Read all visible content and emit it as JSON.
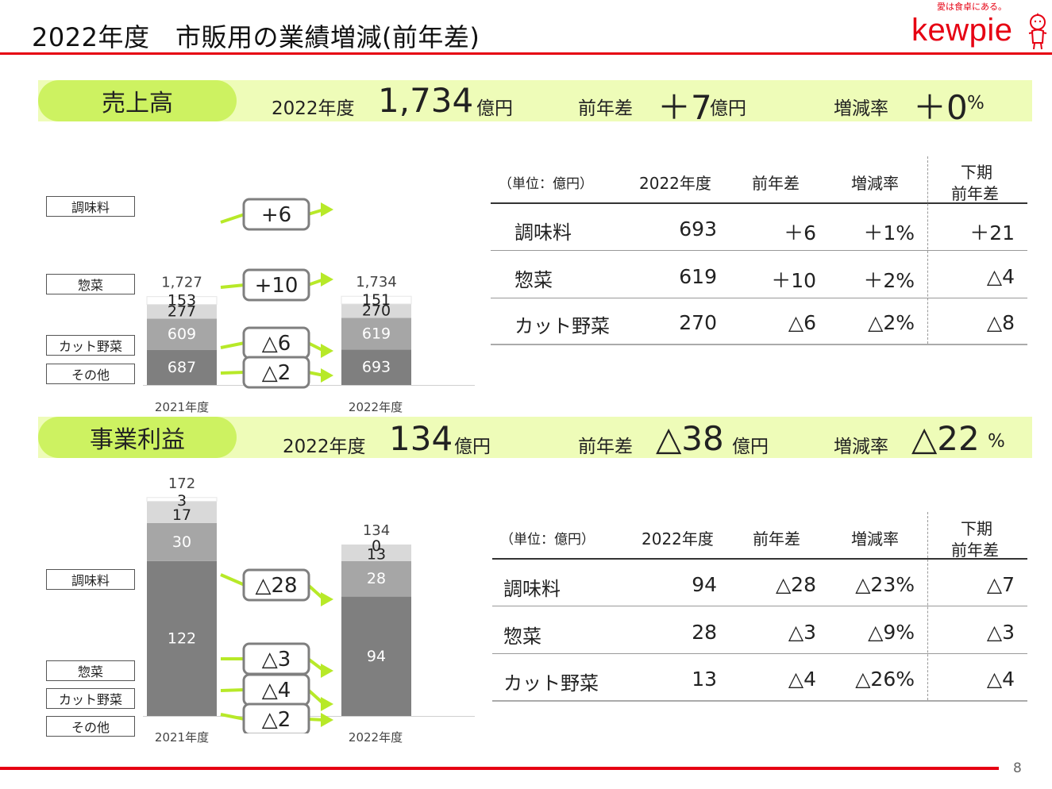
{
  "header": {
    "title": "2022年度　市販用の業績増減(前年差)",
    "logo_tagline": "愛は食卓にある。",
    "logo_text": "kewpie",
    "page_number": "8"
  },
  "sales": {
    "pill": "売上高",
    "year_label": "2022年度",
    "value": "1,734",
    "value_unit": "億円",
    "diff_label": "前年差",
    "diff_value": "＋7",
    "diff_unit": "億円",
    "rate_label": "増減率",
    "rate_value": "＋0",
    "rate_unit": "%"
  },
  "profit": {
    "pill": "事業利益",
    "year_label": "2022年度",
    "value": "134",
    "value_unit": "億円",
    "diff_label": "前年差",
    "diff_value": "△38",
    "diff_unit": "億円",
    "rate_label": "増減率",
    "rate_value": "△22",
    "rate_unit": "%"
  },
  "chart_data": [
    {
      "type": "bar",
      "stacked": true,
      "categories": [
        "2021年度",
        "2022年度"
      ],
      "totals": [
        "1,727",
        "1,734"
      ],
      "series": [
        {
          "name": "調味料",
          "values": [
            687,
            693
          ],
          "labels": [
            "687",
            "693"
          ],
          "color": "#7f7f7f"
        },
        {
          "name": "惣菜",
          "values": [
            609,
            619
          ],
          "labels": [
            "609",
            "619"
          ],
          "color": "#a6a6a6"
        },
        {
          "name": "カット野菜",
          "values": [
            277,
            270
          ],
          "labels": [
            "277",
            "270"
          ],
          "color": "#d9d9d9"
        },
        {
          "name": "その他",
          "values": [
            153,
            151
          ],
          "labels": [
            "153",
            "151"
          ],
          "color": "#ffffff"
        }
      ],
      "changes": [
        "+6",
        "+10",
        "△6",
        "△2"
      ]
    },
    {
      "type": "bar",
      "stacked": true,
      "categories": [
        "2021年度",
        "2022年度"
      ],
      "totals": [
        "172",
        "134"
      ],
      "series": [
        {
          "name": "調味料",
          "values": [
            122,
            94
          ],
          "labels": [
            "122",
            "94"
          ],
          "color": "#7f7f7f"
        },
        {
          "name": "惣菜",
          "values": [
            30,
            28
          ],
          "labels": [
            "30",
            "28"
          ],
          "color": "#a6a6a6"
        },
        {
          "name": "カット野菜",
          "values": [
            17,
            13
          ],
          "labels": [
            "17",
            "13"
          ],
          "color": "#d9d9d9"
        },
        {
          "name": "その他",
          "values": [
            3,
            0
          ],
          "labels": [
            "3",
            "0"
          ],
          "color": "#ffffff"
        }
      ],
      "changes": [
        "△28",
        "△3",
        "△4",
        "△2"
      ]
    }
  ],
  "tables": [
    {
      "unit": "（単位：億円）",
      "headers": [
        "2022年度",
        "前年差",
        "増減率"
      ],
      "h2_header": [
        "下期",
        "前年差"
      ],
      "rows": [
        {
          "name": "調味料",
          "cells": [
            "693",
            "＋6",
            "＋1%",
            "＋21"
          ]
        },
        {
          "name": "惣菜",
          "cells": [
            "619",
            "＋10",
            "＋2%",
            "△4"
          ]
        },
        {
          "name": "カット野菜",
          "cells": [
            "270",
            "△6",
            "△2%",
            "△8"
          ]
        }
      ]
    },
    {
      "unit": "（単位：億円）",
      "headers": [
        "2022年度",
        "前年差",
        "増減率"
      ],
      "h2_header": [
        "下期",
        "前年差"
      ],
      "rows": [
        {
          "name": "調味料",
          "cells": [
            "94",
            "△28",
            "△23%",
            "△7"
          ]
        },
        {
          "name": "惣菜",
          "cells": [
            "28",
            "△3",
            "△9%",
            "△3"
          ]
        },
        {
          "name": "カット野菜",
          "cells": [
            "13",
            "△4",
            "△26%",
            "△4"
          ]
        }
      ]
    }
  ],
  "colors": {
    "accent_red": "#e60012",
    "pill_green": "#cdf261",
    "band_green": "#eefcb8",
    "arrow_green": "#b7e928"
  }
}
